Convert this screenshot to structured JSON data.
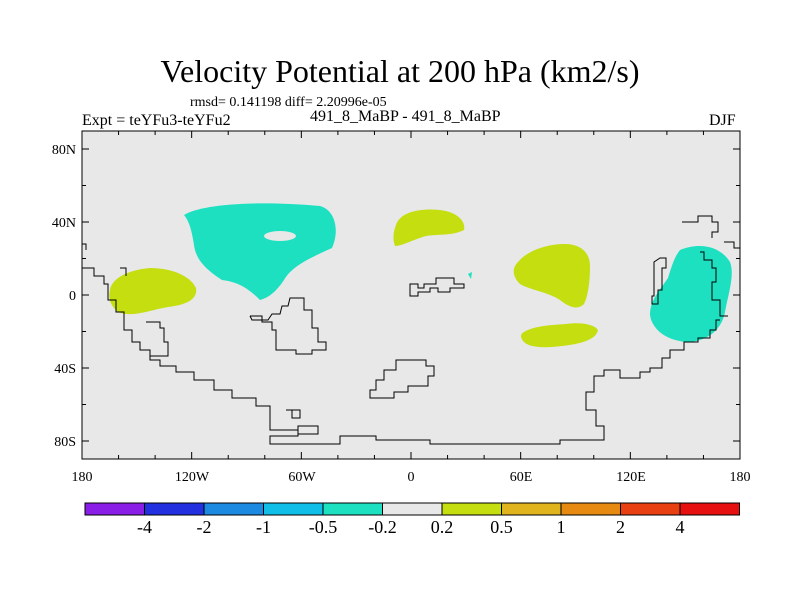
{
  "header": {
    "title": "Velocity Potential at 200 hPa (km2/s)",
    "stats": "rmsd= 0.141198 diff= 2.20996e-05",
    "experiment": "Expt = teYFu3-teYFu2",
    "case": "491_8_MaBP - 491_8_MaBP",
    "season": "DJF"
  },
  "axes": {
    "lat_labels": [
      {
        "lat": 80,
        "text": "80N"
      },
      {
        "lat": 40,
        "text": "40N"
      },
      {
        "lat": 0,
        "text": "0"
      },
      {
        "lat": -40,
        "text": "40S"
      },
      {
        "lat": -80,
        "text": "80S"
      }
    ],
    "lon_labels": [
      {
        "lon": 0,
        "text": "180"
      },
      {
        "lon": 60,
        "text": "120W"
      },
      {
        "lon": 120,
        "text": "60W"
      },
      {
        "lon": 180,
        "text": "0"
      },
      {
        "lon": 240,
        "text": "60E"
      },
      {
        "lon": 300,
        "text": "120E"
      },
      {
        "lon": 360,
        "text": "180"
      }
    ]
  },
  "colors": {
    "background": "#e8e8e8",
    "negative_fill": "#1de0c0",
    "positive_fill": "#c4de10"
  },
  "colorbar": {
    "colors": [
      "#8a1ee6",
      "#2230e0",
      "#1c8ae0",
      "#10bee8",
      "#1de0c0",
      "#e8e8e8",
      "#c4de10",
      "#e0b41c",
      "#e68a12",
      "#e84010",
      "#e61010"
    ],
    "labels": [
      "-4",
      "-2",
      "-1",
      "-0.5",
      "-0.2",
      "0.2",
      "0.5",
      "1",
      "2",
      "4"
    ]
  }
}
